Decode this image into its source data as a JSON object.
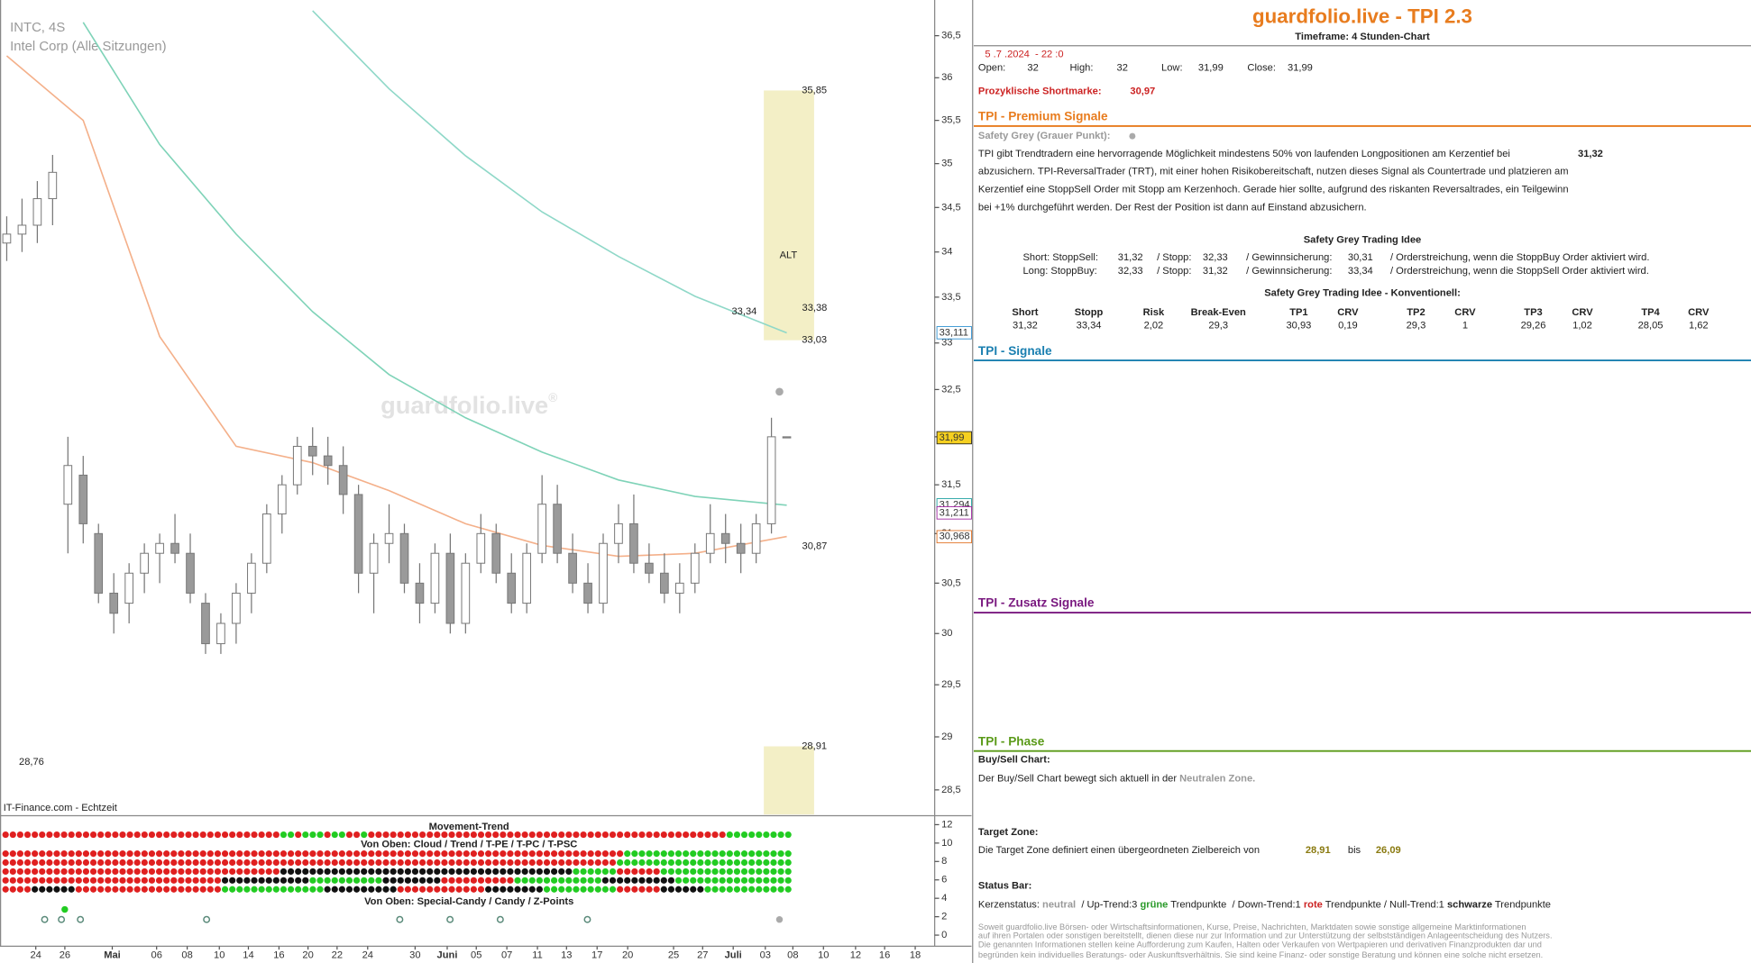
{
  "chart_data": {
    "type": "candlestick",
    "symbol": "INTC, 4S",
    "name": "Intel Corp (Alle Sitzungen)",
    "watermark": "guardfolio.live",
    "watermark_mark": "®",
    "source": "IT-Finance.com - Echtzeit",
    "log_scale": true,
    "xlim": [
      -0.44,
      60.6
    ],
    "ylim": [
      28.27,
      36.93
    ],
    "up_color": "#ffffff",
    "down_color": "#9a9a9a",
    "wick_color": "#777777",
    "open": [
      34.1,
      34.2,
      34.3,
      34.6,
      31.3,
      31.6,
      31.0,
      30.4,
      30.3,
      30.6,
      30.8,
      30.9,
      30.8,
      30.3,
      29.9,
      30.1,
      30.4,
      30.7,
      31.2,
      31.5,
      31.9,
      31.8,
      31.7,
      31.4,
      30.6,
      30.9,
      31.0,
      30.5,
      30.3,
      30.8,
      30.1,
      30.7,
      31.0,
      30.6,
      30.3,
      30.8,
      31.3,
      30.8,
      30.5,
      30.3,
      30.9,
      31.1,
      30.7,
      30.6,
      30.4,
      30.5,
      30.8,
      31.0,
      30.9,
      30.8,
      31.1,
      32
    ],
    "high": [
      34.4,
      34.6,
      34.8,
      35.1,
      32.0,
      31.8,
      31.1,
      30.6,
      30.7,
      30.9,
      31.0,
      31.2,
      31.0,
      30.4,
      30.2,
      30.5,
      30.8,
      31.3,
      31.6,
      32.0,
      32.1,
      32.0,
      31.9,
      31.5,
      31.0,
      31.3,
      31.1,
      30.7,
      30.9,
      31.0,
      30.8,
      31.2,
      31.1,
      30.8,
      30.9,
      31.6,
      31.5,
      31.0,
      30.7,
      31.0,
      31.3,
      31.4,
      30.9,
      30.8,
      30.7,
      30.9,
      31.3,
      31.2,
      31.1,
      31.2,
      32.2,
      32
    ],
    "low": [
      33.9,
      34.0,
      34.1,
      34.3,
      30.8,
      30.9,
      30.3,
      30.0,
      30.1,
      30.4,
      30.5,
      30.7,
      30.3,
      29.8,
      29.8,
      29.9,
      30.2,
      30.6,
      31.0,
      31.4,
      31.6,
      31.5,
      31.2,
      30.4,
      30.2,
      30.7,
      30.4,
      30.1,
      30.2,
      30.0,
      30.0,
      30.6,
      30.5,
      30.2,
      30.2,
      30.7,
      30.7,
      30.4,
      30.2,
      30.2,
      30.7,
      30.6,
      30.5,
      30.3,
      30.2,
      30.4,
      30.7,
      30.7,
      30.6,
      30.7,
      31.0,
      31.99
    ],
    "close": [
      34.2,
      34.3,
      34.6,
      34.9,
      31.7,
      31.1,
      30.4,
      30.2,
      30.6,
      30.8,
      30.9,
      30.8,
      30.4,
      29.9,
      30.1,
      30.4,
      30.7,
      31.2,
      31.5,
      31.9,
      31.8,
      31.7,
      31.4,
      30.6,
      30.9,
      31.0,
      30.5,
      30.3,
      30.8,
      30.1,
      30.7,
      31.0,
      30.6,
      30.3,
      30.8,
      31.3,
      30.8,
      30.5,
      30.3,
      30.9,
      31.1,
      30.7,
      30.6,
      30.4,
      30.5,
      30.8,
      31.0,
      30.9,
      30.8,
      31.1,
      32.0,
      31.99
    ],
    "lines": [
      {
        "color": "#8fd8c8",
        "x": [
          0,
          5,
          10,
          15,
          20,
          25,
          30,
          35,
          40,
          45,
          51
        ],
        "values": [
          null,
          null,
          null,
          null,
          36.8,
          35.87,
          35.09,
          34.45,
          33.95,
          33.51,
          33.11
        ]
      },
      {
        "color": "#7fd3b8",
        "x": [
          0,
          5,
          10,
          15,
          20,
          25,
          30,
          35,
          40,
          45,
          51
        ],
        "values": [
          null,
          36.66,
          35.22,
          34.2,
          33.34,
          32.66,
          32.2,
          31.84,
          31.55,
          31.38,
          31.29
        ]
      },
      {
        "color": "#f4b08a",
        "x": [
          0,
          5,
          10,
          15,
          20,
          25,
          30,
          35,
          40,
          45,
          51
        ],
        "values": [
          36.26,
          35.5,
          33.07,
          31.9,
          31.73,
          31.44,
          31.1,
          30.88,
          30.77,
          30.8,
          30.97
        ]
      }
    ],
    "yticks": [
      {
        "value": 28.5,
        "label": "28,5"
      },
      29,
      {
        "value": 29.5,
        "label": "29,5"
      },
      30,
      {
        "value": 30.5,
        "label": "30,5"
      },
      31,
      {
        "value": 31.5,
        "label": "31,5"
      },
      32,
      {
        "value": 32.5,
        "label": "32,5"
      },
      33,
      {
        "value": 33.5,
        "label": "33,5"
      },
      34,
      {
        "value": 34.5,
        "label": "34,5"
      },
      35,
      {
        "value": 35.5,
        "label": "35,5"
      },
      36,
      {
        "value": 36.5,
        "label": "36,5"
      }
    ],
    "xticks": [
      {
        "value": 1.9,
        "label": "24"
      },
      {
        "value": 3.8,
        "label": "26"
      },
      {
        "value": 6.9,
        "label": "Mai"
      },
      {
        "value": 9.8,
        "label": "06"
      },
      {
        "value": 11.8,
        "label": "08"
      },
      {
        "value": 13.9,
        "label": "10"
      },
      {
        "value": 15.8,
        "label": "14"
      },
      {
        "value": 17.8,
        "label": "16"
      },
      {
        "value": 19.7,
        "label": "20"
      },
      {
        "value": 21.6,
        "label": "22"
      },
      {
        "value": 23.6,
        "label": "24"
      },
      {
        "value": 26.7,
        "label": "30"
      },
      {
        "value": 28.8,
        "label": "Juni"
      },
      {
        "value": 30.7,
        "label": "05"
      },
      {
        "value": 32.7,
        "label": "07"
      },
      {
        "value": 34.7,
        "label": "11"
      },
      {
        "value": 36.6,
        "label": "13"
      },
      {
        "value": 38.6,
        "label": "17"
      },
      {
        "value": 40.6,
        "label": "20"
      },
      {
        "value": 43.6,
        "label": "25"
      },
      {
        "value": 45.5,
        "label": "27"
      },
      {
        "value": 47.5,
        "label": "Juli"
      },
      {
        "value": 49.6,
        "label": "03"
      },
      {
        "value": 51.4,
        "label": "08"
      },
      {
        "value": 53.4,
        "label": "10"
      },
      {
        "value": 55.5,
        "label": "12"
      },
      {
        "value": 57.4,
        "label": "16"
      },
      {
        "value": 59.4,
        "label": "18"
      }
    ],
    "price_labels": [
      {
        "value": 33.111,
        "label": "33,111",
        "color": "#2a8fd0"
      },
      {
        "value": 31.99,
        "label": "31,99",
        "color": "#222222",
        "background": "#f5d020"
      },
      {
        "value": 31.294,
        "label": "31,294",
        "color": "#1aa0a0"
      },
      {
        "value": 31.211,
        "label": "31,211",
        "color": "#a020a0"
      },
      {
        "value": 30.968,
        "label": "30,968",
        "color": "#e07020"
      }
    ],
    "zones": [
      {
        "top": 35.85,
        "bottom": 33.03,
        "top_label": "35,85",
        "bottom_label": "33,03",
        "label": "ALT",
        "color": "#f3efc6"
      },
      {
        "top": 28.91,
        "top_label": "28,91",
        "color": "#f3efc6"
      }
    ],
    "annotations": [
      {
        "x": 52.0,
        "value": 33.38,
        "label": "33,38",
        "color": "#e080d0"
      },
      {
        "x": 47.4,
        "value": 33.34,
        "label": "33,34",
        "color": "#d8c8d8"
      },
      {
        "x": 52.0,
        "value": 30.87,
        "label": "30,87",
        "color": "#e080d0"
      },
      {
        "x": 0.8,
        "value": 28.76,
        "label": "28,76",
        "color": "#5aa05a"
      }
    ],
    "indicator": {
      "title": "Movement-Trend",
      "subtitle": "Von Oben: Cloud / Trend / T-PE / T-PC / T-PSC",
      "subtitle2": "Von Oben: Special-Candy / Candy / Z-Points",
      "ylim": [
        -1.21,
        12.73
      ],
      "yticks": [
        0,
        2,
        4,
        6,
        8,
        10,
        12
      ],
      "dot_colors": {
        "R": "#e02020",
        "G": "#22cc22",
        "K": "#111111"
      },
      "rows": [
        [
          [
            "R",
            38
          ],
          [
            "G",
            2
          ],
          [
            "R",
            1
          ],
          [
            "G",
            3
          ],
          [
            "R",
            1
          ],
          [
            "G",
            2
          ],
          [
            "R",
            2
          ],
          [
            "G",
            1
          ],
          [
            "R",
            49
          ],
          [
            "G",
            9
          ]
        ],
        [
          [
            "R",
            85
          ],
          [
            "G",
            23
          ]
        ],
        [
          [
            "R",
            84
          ],
          [
            "G",
            24
          ]
        ],
        [
          [
            "R",
            38
          ],
          [
            "K",
            40
          ],
          [
            "G",
            6
          ],
          [
            "R",
            6
          ],
          [
            "G",
            18
          ]
        ],
        [
          [
            "R",
            30
          ],
          [
            "K",
            12
          ],
          [
            "G",
            10
          ],
          [
            "K",
            8
          ],
          [
            "R",
            10
          ],
          [
            "G",
            12
          ],
          [
            "K",
            10
          ],
          [
            "G",
            16
          ]
        ],
        [
          [
            "R",
            4
          ],
          [
            "K",
            6
          ],
          [
            "R",
            20
          ],
          [
            "G",
            14
          ],
          [
            "K",
            10
          ],
          [
            "R",
            12
          ],
          [
            "K",
            8
          ],
          [
            "G",
            10
          ],
          [
            "R",
            6
          ],
          [
            "K",
            6
          ],
          [
            "G",
            12
          ]
        ]
      ]
    }
  },
  "panel": {
    "title": "guardfolio.live - TPI 2.3",
    "timeframe": "Timeframe: 4 Stunden-Chart",
    "datetime": "5 .7 .2024  - 22 :0",
    "ohlc": [
      [
        "Open:",
        "32"
      ],
      [
        "High:",
        "32"
      ],
      [
        "Low:",
        "31,99"
      ],
      [
        "Close:",
        "31,99"
      ]
    ],
    "shortmark": [
      "Prozyklische Shortmarke:",
      "30,97"
    ],
    "premium": {
      "heading": "TPI - Premium Signale",
      "safety": "Safety Grey (Grauer Punkt):",
      "lines": [
        "TPI gibt Trendtradern eine hervorragende Möglichkeit mindestens 50% von laufenden Longpositionen am Kerzentief bei",
        "abzusichern. TPI-ReversalTrader (TRT), mit einer hohen Risikobereitschaft, nutzen dieses Signal als Countertrade und platzieren am",
        "Kerzentief eine StoppSell Order mit Stopp am Kerzenhoch. Gerade hier sollte, aufgrund des riskanten Reversaltrades, ein Teilgewinn",
        "bei +1% durchgeführt werden. Der Rest der Position ist dann auf Einstand abzusichern."
      ],
      "key_value": "31,32",
      "idea_title": "Safety Grey Trading Idee",
      "idea_rows": [
        [
          "Short: StoppSell:",
          "31,32",
          "/ Stopp:",
          "32,33",
          "/ Gewinnsicherung:",
          "30,31",
          "/ Orderstreichung, wenn die StoppBuy Order aktiviert wird."
        ],
        [
          "Long: StoppBuy:",
          "32,33",
          "/ Stopp:",
          "31,32",
          "/ Gewinnsicherung:",
          "33,34",
          "/ Orderstreichung, wenn die StoppSell Order aktiviert wird."
        ]
      ],
      "conv_title": "Safety Grey Trading Idee - Konventionell:",
      "table": {
        "header": [
          "Short",
          "Stopp",
          "Risk",
          "Break-Even",
          "TP1",
          "CRV",
          "TP2",
          "CRV",
          "TP3",
          "CRV",
          "TP4",
          "CRV"
        ],
        "row": [
          "31,32",
          "33,34",
          "2,02",
          "29,3",
          "30,93",
          "0,19",
          "29,3",
          "1",
          "29,26",
          "1,02",
          "28,05",
          "1,62"
        ]
      }
    },
    "signale": "TPI - Signale",
    "zusatz": "TPI - Zusatz Signale",
    "phase": {
      "heading": "TPI - Phase",
      "buysell_title": "Buy/Sell Chart:",
      "buysell_text": "Der Buy/Sell Chart bewegt sich aktuell in der ",
      "buysell_zone": "Neutralen Zone.",
      "target_title": "Target Zone:",
      "target_text": "Die Target Zone definiert einen übergeordneten Zielbereich von",
      "target_from": "28,91",
      "target_mid": "bis",
      "target_to": "26,09",
      "status_title": "Status Bar:",
      "status": [
        {
          "text": "Kerzenstatus: ",
          "style": "n"
        },
        {
          "text": "neutral",
          "style": "gray"
        },
        {
          "text": "  / Up-Trend:3 ",
          "style": "n"
        },
        {
          "text": "grüne",
          "style": "green"
        },
        {
          "text": " Trendpunkte  / Down-Trend:1 ",
          "style": "n"
        },
        {
          "text": "rote",
          "style": "red"
        },
        {
          "text": " Trendpunkte / Null-Trend:1 ",
          "style": "n"
        },
        {
          "text": "schwarze",
          "style": "bold"
        },
        {
          "text": " Trendpunkte",
          "style": "n"
        }
      ]
    },
    "disclaimer": [
      "Soweit guardfolio.live Börsen- oder Wirtschaftsinformationen, Kurse, Preise, Nachrichten, Marktdaten sowie sonstige allgemeine Marktinformationen",
      "auf ihren Portalen oder sonstigen bereitstellt, dienen diese nur zur Information und zur Unterstützung der selbstständigen Anlageentscheidung des Nutzers.",
      "Die genannten Informationen stellen keine Aufforderung zum Kaufen, Halten oder Verkaufen von Wertpapieren und derivativen Finanzprodukten dar und",
      "begründen kein individuelles Beratungs- oder Auskunftsverhältnis. Sie sind keine Finanz- oder sonstige Beratung und können eine solche nicht ersetzen."
    ]
  }
}
